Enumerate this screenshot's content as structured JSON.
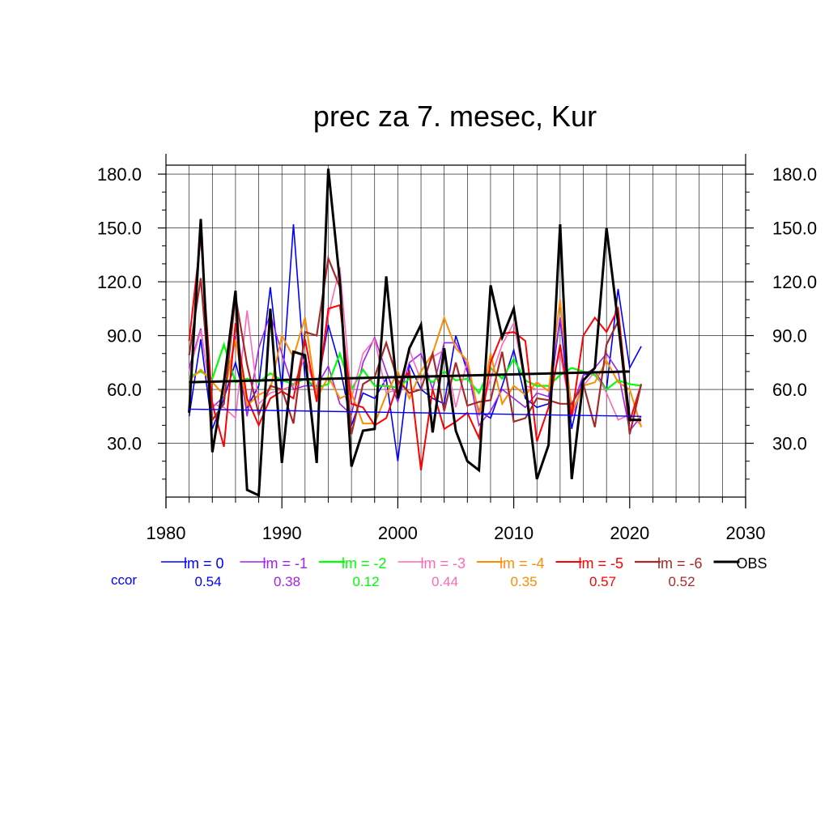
{
  "chart_data": {
    "type": "line",
    "title": "prec za 7. mesec, Kur",
    "xlim": [
      1980,
      2030
    ],
    "ylim": [
      0,
      185
    ],
    "x_ticks": [
      "1980",
      "1990",
      "2000",
      "2010",
      "2020",
      "2030"
    ],
    "y_ticks": [
      "30.0",
      "60.0",
      "90.0",
      "120.0",
      "150.0",
      "180.0"
    ],
    "x": [
      1982,
      1983,
      1984,
      1985,
      1986,
      1987,
      1988,
      1989,
      1990,
      1991,
      1992,
      1993,
      1994,
      1995,
      1996,
      1997,
      1998,
      1999,
      2000,
      2001,
      2002,
      2003,
      2004,
      2005,
      2006,
      2007,
      2008,
      2009,
      2010,
      2011,
      2012,
      2013,
      2014,
      2015,
      2016,
      2017,
      2018,
      2019,
      2020,
      2021
    ],
    "series": [
      {
        "name": "lm = 0",
        "color": "#0000ff",
        "width": 1.6,
        "ccor": "0.54",
        "values": [
          45,
          88,
          38,
          55,
          75,
          50,
          62,
          117,
          60,
          152,
          66,
          60,
          96,
          73,
          40,
          58,
          55,
          66,
          20,
          74,
          60,
          55,
          52,
          90,
          70,
          48,
          44,
          62,
          82,
          55,
          50,
          52,
          100,
          38,
          68,
          70,
          60,
          116,
          72,
          84
        ],
        "trend": [
          49,
          45
        ]
      },
      {
        "name": "lm = -1",
        "color": "#a020f0",
        "width": 1.6,
        "ccor": "0.38",
        "values": [
          72,
          94,
          50,
          56,
          90,
          45,
          83,
          102,
          80,
          60,
          62,
          62,
          73,
          52,
          46,
          75,
          89,
          70,
          53,
          75,
          80,
          60,
          86,
          86,
          73,
          40,
          48,
          60,
          55,
          50,
          58,
          56,
          100,
          50,
          68,
          72,
          80,
          70,
          37,
          45
        ]
      },
      {
        "name": "lm = -2",
        "color": "#00ff00",
        "width": 2.2,
        "ccor": "0.12",
        "values": [
          67,
          70,
          66,
          85,
          64,
          66,
          64,
          69,
          65,
          63,
          66,
          61,
          63,
          80,
          60,
          71,
          62,
          62,
          61,
          66,
          68,
          64,
          70,
          65,
          66,
          58,
          72,
          66,
          77,
          65,
          62,
          62,
          68,
          72,
          70,
          68,
          60,
          65,
          63,
          62
        ]
      },
      {
        "name": "lm = -3",
        "color": "#ff69b4",
        "width": 1.6,
        "ccor": "0.44",
        "values": [
          70,
          93,
          52,
          50,
          44,
          104,
          52,
          58,
          60,
          62,
          78,
          58,
          101,
          128,
          55,
          80,
          88,
          58,
          60,
          82,
          65,
          78,
          82,
          50,
          76,
          45,
          66,
          85,
          97,
          62,
          60,
          60,
          80,
          45,
          62,
          70,
          58,
          43,
          46,
          40
        ]
      },
      {
        "name": "lm = -4",
        "color": "#ff8c00",
        "width": 2.0,
        "ccor": "0.35",
        "values": [
          65,
          71,
          64,
          57,
          88,
          51,
          57,
          60,
          90,
          78,
          100,
          55,
          67,
          55,
          58,
          41,
          41,
          57,
          70,
          55,
          70,
          80,
          100,
          83,
          76,
          46,
          80,
          52,
          62,
          57,
          64,
          59,
          110,
          47,
          62,
          64,
          76,
          64,
          60,
          39
        ]
      },
      {
        "name": "lm = -5",
        "color": "#ff0000",
        "width": 2.0,
        "ccor": "0.57",
        "values": [
          87,
          145,
          52,
          28,
          97,
          55,
          40,
          55,
          59,
          55,
          88,
          53,
          105,
          107,
          52,
          50,
          40,
          44,
          63,
          70,
          15,
          60,
          38,
          42,
          47,
          33,
          75,
          91,
          92,
          87,
          31,
          50,
          85,
          45,
          90,
          100,
          92,
          105,
          42,
          63
        ]
      },
      {
        "name": "lm = -6",
        "color": "#a52a2a",
        "width": 2.2,
        "ccor": "0.52",
        "values": [
          79,
          122,
          43,
          52,
          112,
          74,
          46,
          62,
          60,
          41,
          92,
          90,
          133,
          117,
          35,
          63,
          67,
          86,
          65,
          58,
          60,
          80,
          48,
          75,
          51,
          53,
          54,
          81,
          42,
          44,
          55,
          54,
          52,
          52,
          63,
          39,
          85,
          98,
          35,
          63
        ]
      },
      {
        "name": "OBS",
        "color": "#000000",
        "width": 3.0,
        "ccor": "",
        "values": [
          47,
          155,
          25,
          64,
          115,
          4,
          1,
          105,
          19,
          81,
          79,
          19,
          183,
          120,
          17,
          37,
          38,
          123,
          55,
          83,
          96,
          36,
          83,
          37,
          20,
          15,
          118,
          89,
          105,
          63,
          10,
          29,
          152,
          10,
          65,
          72,
          150,
          97,
          43,
          43
        ],
        "trend": [
          64,
          70
        ]
      }
    ],
    "ccor_label": "ccor",
    "grid": true,
    "legend_position": "bottom"
  }
}
